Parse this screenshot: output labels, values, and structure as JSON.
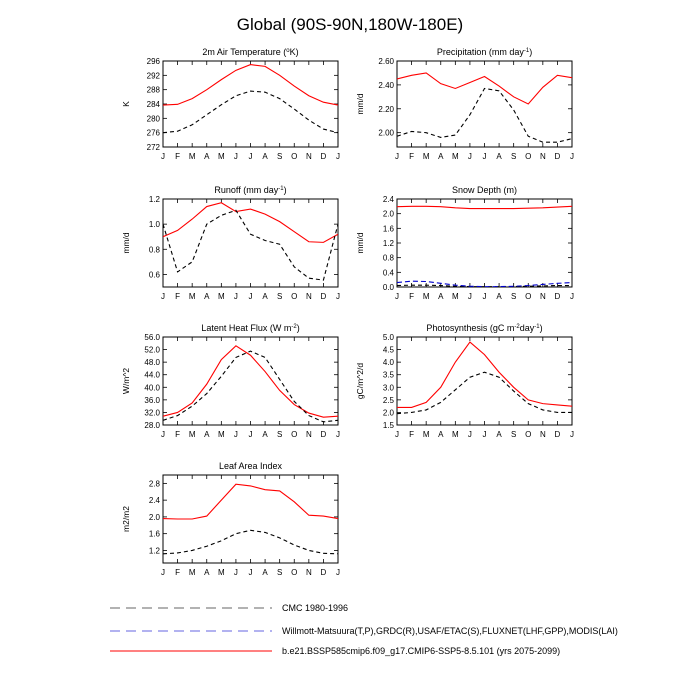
{
  "figure": {
    "title": "Global (90S-90N,180W-180E)"
  },
  "colors": {
    "model": "#ff0000",
    "obs_cmc": "#000000",
    "obs_wm": "#0000cc",
    "axis": "#000000"
  },
  "legend": {
    "placement": "bottom",
    "items": [
      {
        "label": "CMC 1980-1996",
        "color": "#000000",
        "style": "dashed"
      },
      {
        "label": "Willmott-Matsuura(T,P),GRDC(R),USAF/ETAC(S),FLUXNET(LHF,GPP),MODIS(LAI)",
        "color": "#0000cc",
        "style": "dashed"
      },
      {
        "label": "b.e21.BSSP585cmip6.f09_g17.CMIP6-SSP5-8.5.101 (yrs 2075-2099)",
        "color": "#ff0000",
        "style": "solid"
      }
    ]
  },
  "chart_data": [
    {
      "type": "line",
      "title": "2m Air Temperature (°K)",
      "ylabel": "K",
      "categories": [
        "J",
        "F",
        "M",
        "A",
        "M",
        "J",
        "J",
        "A",
        "S",
        "O",
        "N",
        "D",
        "J"
      ],
      "ylim": [
        272,
        296
      ],
      "yticks": [
        "272",
        "276",
        "280",
        "284",
        "288",
        "292",
        "296"
      ],
      "series": [
        {
          "role": "model",
          "values": [
            283.7,
            283.9,
            285.5,
            288.0,
            290.8,
            293.4,
            295.0,
            294.5,
            292.0,
            289.0,
            286.3,
            284.5,
            283.7
          ]
        },
        {
          "role": "obs",
          "values": [
            276.0,
            276.4,
            278.2,
            281.0,
            283.8,
            286.3,
            287.6,
            287.3,
            285.5,
            282.6,
            279.5,
            277.0,
            276.0
          ]
        }
      ]
    },
    {
      "type": "line",
      "title": "Precipitation (mm day-1)",
      "ylabel": "mm/d",
      "categories": [
        "J",
        "F",
        "M",
        "A",
        "M",
        "J",
        "J",
        "A",
        "S",
        "O",
        "N",
        "D",
        "J"
      ],
      "ylim": [
        1.88,
        2.6
      ],
      "yticks": [
        "2.00",
        "2.20",
        "2.40",
        "2.60"
      ],
      "series": [
        {
          "role": "model",
          "values": [
            2.45,
            2.48,
            2.5,
            2.41,
            2.37,
            2.42,
            2.47,
            2.39,
            2.3,
            2.24,
            2.38,
            2.48,
            2.46
          ]
        },
        {
          "role": "obs",
          "values": [
            1.97,
            2.01,
            2.0,
            1.96,
            1.98,
            2.15,
            2.37,
            2.35,
            2.19,
            1.97,
            1.92,
            1.92,
            1.95
          ]
        }
      ]
    },
    {
      "type": "line",
      "title": "Runoff (mm day-1)",
      "ylabel": "mm/d",
      "categories": [
        "J",
        "F",
        "M",
        "A",
        "M",
        "J",
        "J",
        "A",
        "S",
        "O",
        "N",
        "D",
        "J"
      ],
      "ylim": [
        0.5,
        1.2
      ],
      "yticks": [
        "0.6",
        "0.8",
        "1.0",
        "1.2"
      ],
      "series": [
        {
          "role": "model",
          "values": [
            0.9,
            0.95,
            1.04,
            1.14,
            1.17,
            1.1,
            1.12,
            1.08,
            1.02,
            0.94,
            0.86,
            0.855,
            0.92
          ]
        },
        {
          "role": "obs",
          "values": [
            1.0,
            0.62,
            0.7,
            1.0,
            1.07,
            1.11,
            0.92,
            0.87,
            0.84,
            0.66,
            0.57,
            0.555,
            1.0
          ]
        }
      ]
    },
    {
      "type": "line",
      "title": "Snow Depth (m)",
      "ylabel": "mm/d",
      "categories": [
        "J",
        "F",
        "M",
        "A",
        "M",
        "J",
        "J",
        "A",
        "S",
        "O",
        "N",
        "D",
        "J"
      ],
      "ylim": [
        0,
        2.4
      ],
      "yticks": [
        "0.0",
        "0.4",
        "0.8",
        "1.2",
        "1.6",
        "2.0",
        "2.4"
      ],
      "series": [
        {
          "role": "model",
          "values": [
            2.19,
            2.2,
            2.2,
            2.19,
            2.16,
            2.14,
            2.14,
            2.14,
            2.14,
            2.15,
            2.16,
            2.18,
            2.2
          ]
        },
        {
          "role": "obs",
          "values": [
            0.04,
            0.05,
            0.05,
            0.04,
            0.02,
            0.01,
            0.01,
            0.01,
            0.01,
            0.02,
            0.03,
            0.04,
            0.04
          ]
        },
        {
          "role": "obs_wm",
          "values": [
            0.12,
            0.16,
            0.15,
            0.1,
            0.05,
            0.02,
            0.01,
            0.01,
            0.02,
            0.04,
            0.07,
            0.1,
            0.12
          ]
        }
      ]
    },
    {
      "type": "line",
      "title": "Latent Heat Flux (W m-2)",
      "ylabel": "W/m^2",
      "categories": [
        "J",
        "F",
        "M",
        "A",
        "M",
        "J",
        "J",
        "A",
        "S",
        "O",
        "N",
        "D",
        "J"
      ],
      "ylim": [
        28,
        56
      ],
      "yticks": [
        "28.0",
        "32.0",
        "36.0",
        "40.0",
        "44.0",
        "48.0",
        "52.0",
        "56.0"
      ],
      "series": [
        {
          "role": "model",
          "values": [
            30.8,
            32.0,
            35.0,
            41.0,
            48.8,
            53.2,
            50.2,
            45.0,
            39.0,
            34.5,
            31.8,
            30.5,
            30.8
          ]
        },
        {
          "role": "obs",
          "values": [
            29.5,
            31.0,
            34.0,
            38.0,
            43.5,
            49.5,
            51.5,
            49.5,
            42.5,
            35.5,
            31.0,
            29.0,
            29.5
          ]
        }
      ]
    },
    {
      "type": "line",
      "title": "Photosynthesis (gC m-2day-1)",
      "ylabel": "gC/m^2/d",
      "categories": [
        "J",
        "F",
        "M",
        "A",
        "M",
        "J",
        "J",
        "A",
        "S",
        "O",
        "N",
        "D",
        "J"
      ],
      "ylim": [
        1.5,
        5.0
      ],
      "yticks": [
        "1.5",
        "2.0",
        "2.5",
        "3.0",
        "3.5",
        "4.0",
        "4.5",
        "5.0"
      ],
      "series": [
        {
          "role": "model",
          "values": [
            2.2,
            2.2,
            2.4,
            3.0,
            4.0,
            4.8,
            4.3,
            3.6,
            3.0,
            2.5,
            2.35,
            2.3,
            2.25
          ]
        },
        {
          "role": "obs",
          "values": [
            1.95,
            2.0,
            2.1,
            2.4,
            2.9,
            3.4,
            3.6,
            3.4,
            2.85,
            2.35,
            2.1,
            2.0,
            2.0
          ]
        }
      ]
    },
    {
      "type": "line",
      "title": "Leaf Area Index",
      "ylabel": "m2/m2",
      "categories": [
        "J",
        "F",
        "M",
        "A",
        "M",
        "J",
        "J",
        "A",
        "S",
        "O",
        "N",
        "D",
        "J"
      ],
      "ylim": [
        0.9,
        3.0
      ],
      "yticks": [
        "1.2",
        "1.6",
        "2.0",
        "2.4",
        "2.8"
      ],
      "series": [
        {
          "role": "model",
          "values": [
            1.96,
            1.95,
            1.95,
            2.02,
            2.4,
            2.78,
            2.74,
            2.65,
            2.62,
            2.36,
            2.04,
            2.02,
            1.96
          ]
        },
        {
          "role": "obs",
          "values": [
            1.12,
            1.14,
            1.2,
            1.3,
            1.43,
            1.6,
            1.68,
            1.63,
            1.5,
            1.33,
            1.2,
            1.13,
            1.12
          ]
        }
      ]
    }
  ]
}
